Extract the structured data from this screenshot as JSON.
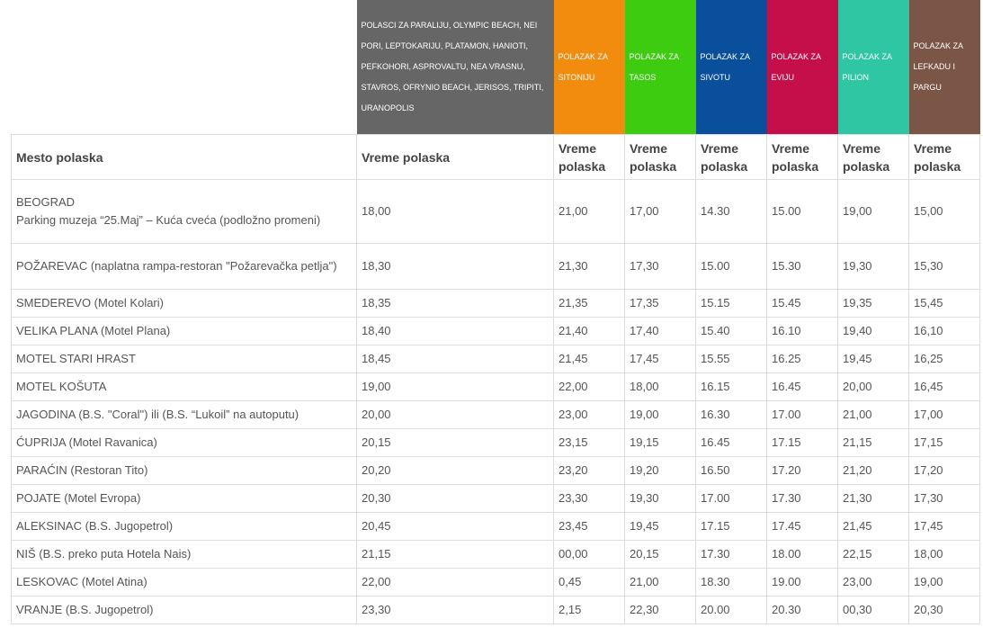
{
  "header_groups": [
    {
      "label": "POLASCI ZA PARALIJU, OLYMPIC BEACH, NEI PORI, LEPTOKARIJU, PLATAMON, HANIOTI, PEFKOHORI, ASPROVALTU, NEA VRASNU, STAVROS, OFRYNIO BEACH, JERISOS, TRIPITI, URANOPOLIS",
      "color": "#666666"
    },
    {
      "label": "POLAZAK ZA SITONIJU",
      "color": "#f28c0f"
    },
    {
      "label": "POLAZAK ZA TASOS",
      "color": "#3dcc0f"
    },
    {
      "label": "POLAZAK ZA SIVOTU",
      "color": "#0a4f9c"
    },
    {
      "label": "POLAZAK ZA EVIJU",
      "color": "#c50f4a"
    },
    {
      "label": "POLAZAK ZA PILION",
      "color": "#2ec6a3"
    },
    {
      "label": "POLAZAK ZA LEFKADU I PARGU",
      "color": "#7b5546"
    }
  ],
  "column_headers": [
    "Mesto polaska",
    "Vreme polaska",
    "Vreme polaska",
    "Vreme polaska",
    "Vreme polaska",
    "Vreme polaska",
    "Vreme polaska",
    "Vreme polaska"
  ],
  "rows": [
    {
      "place_lines": [
        "BEOGRAD",
        "Parking muzeja “25.Maj” – Kuća cveća (podložno promeni)"
      ],
      "times": [
        "18,00",
        "21,00",
        "17,00",
        "14.30",
        "15.00",
        "19,00",
        "15,00"
      ]
    },
    {
      "place_lines": [
        "POŽAREVAC (naplatna rampa-restoran \"Požarevačka petlja\")"
      ],
      "times": [
        "18,30",
        "21,30",
        "17,30",
        "15.00",
        "15.30",
        "19,30",
        "15,30"
      ]
    },
    {
      "place_lines": [
        "SMEDEREVO (Motel Kolari)"
      ],
      "times": [
        "18,35",
        "21,35",
        "17,35",
        "15.15",
        "15.45",
        "19,35",
        "15,45"
      ]
    },
    {
      "place_lines": [
        "VELIKA PLANA (Motel Plana)"
      ],
      "times": [
        "18,40",
        "21,40",
        "17,40",
        "15.40",
        "16.10",
        "19,40",
        "16,10"
      ]
    },
    {
      "place_lines": [
        "MOTEL STARI HRAST"
      ],
      "times": [
        "18,45",
        "21,45",
        "17,45",
        "15.55",
        "16.25",
        "19,45",
        "16,25"
      ]
    },
    {
      "place_lines": [
        "MOTEL KOŠUTA"
      ],
      "times": [
        "19,00",
        "22,00",
        "18,00",
        "16.15",
        "16.45",
        "20,00",
        "16,45"
      ]
    },
    {
      "place_lines": [
        "JAGODINA (B.S. \"Coral\") ili (B.S. “Lukoil” na autoputu)"
      ],
      "times": [
        "20,00",
        "23,00",
        "19,00",
        "16.30",
        "17.00",
        "21,00",
        "17,00"
      ]
    },
    {
      "place_lines": [
        "ĆUPRIJA (Motel Ravanica)"
      ],
      "times": [
        "20,15",
        "23,15",
        "19,15",
        "16.45",
        "17.15",
        "21,15",
        "17,15"
      ]
    },
    {
      "place_lines": [
        "PARAĆIN (Restoran Tito)"
      ],
      "times": [
        "20,20",
        "23,20",
        "19,20",
        "16.50",
        "17.20",
        "21,20",
        "17,20"
      ]
    },
    {
      "place_lines": [
        "POJATE (Motel Evropa)"
      ],
      "times": [
        "20,30",
        "23,30",
        "19,30",
        "17.00",
        "17.30",
        "21,30",
        "17,30"
      ]
    },
    {
      "place_lines": [
        "ALEKSINAC (B.S. Jugopetrol)"
      ],
      "times": [
        "20,45",
        "23,45",
        "19,45",
        "17.15",
        "17.45",
        "21,45",
        "17,45"
      ]
    },
    {
      "place_lines": [
        "NIŠ (B.S. preko puta Hotela Nais)"
      ],
      "times": [
        "21,15",
        "00,00",
        "20,15",
        "17.30",
        "18.00",
        "22,15",
        "18,00"
      ]
    },
    {
      "place_lines": [
        "LESKOVAC (Motel Atina)"
      ],
      "times": [
        "22,00",
        "0,45",
        "21,00",
        "18.30",
        "19.00",
        "23,00",
        "19,00"
      ]
    },
    {
      "place_lines": [
        "VRANJE (B.S. Jugopetrol)"
      ],
      "times": [
        "23,30",
        "2,15",
        "22,30",
        "20.00",
        "20.30",
        "00,30",
        "20,30"
      ]
    }
  ]
}
